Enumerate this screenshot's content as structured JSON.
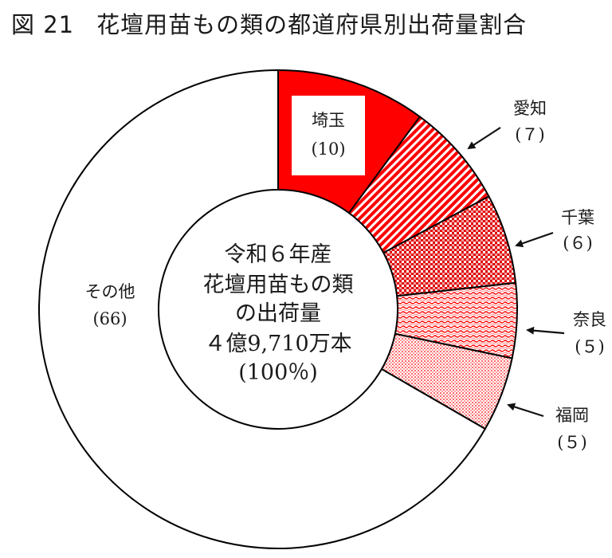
{
  "header": {
    "figure_no": "図 21",
    "title": "花壇用苗もの類の都道府県別出荷量割合"
  },
  "chart_data": {
    "type": "pie",
    "variant": "donut",
    "start_angle_deg": 0,
    "direction": "clockwise",
    "slices": [
      {
        "name": "埼玉",
        "value": 10,
        "value_label": "(10)",
        "color": "#ff0000",
        "pattern": "solid"
      },
      {
        "name": "愛知",
        "value": 7,
        "value_label": "(７)",
        "color": "#ff0000",
        "pattern": "diagonal-stripes"
      },
      {
        "name": "千葉",
        "value": 6,
        "value_label": "(６)",
        "color": "#ff0000",
        "pattern": "checker"
      },
      {
        "name": "奈良",
        "value": 5,
        "value_label": "(５)",
        "color": "#ff0000",
        "pattern": "wave"
      },
      {
        "name": "福岡",
        "value": 5,
        "value_label": "(５)",
        "color": "#ff0000",
        "pattern": "dots"
      },
      {
        "name": "その他",
        "value": 66,
        "value_label": "(66)",
        "color": "#ffffff",
        "pattern": "none"
      }
    ],
    "center_text": [
      "令和６年産",
      "花壇用苗もの類",
      "の出荷量",
      "４億9,710万本",
      "(100％)"
    ]
  }
}
